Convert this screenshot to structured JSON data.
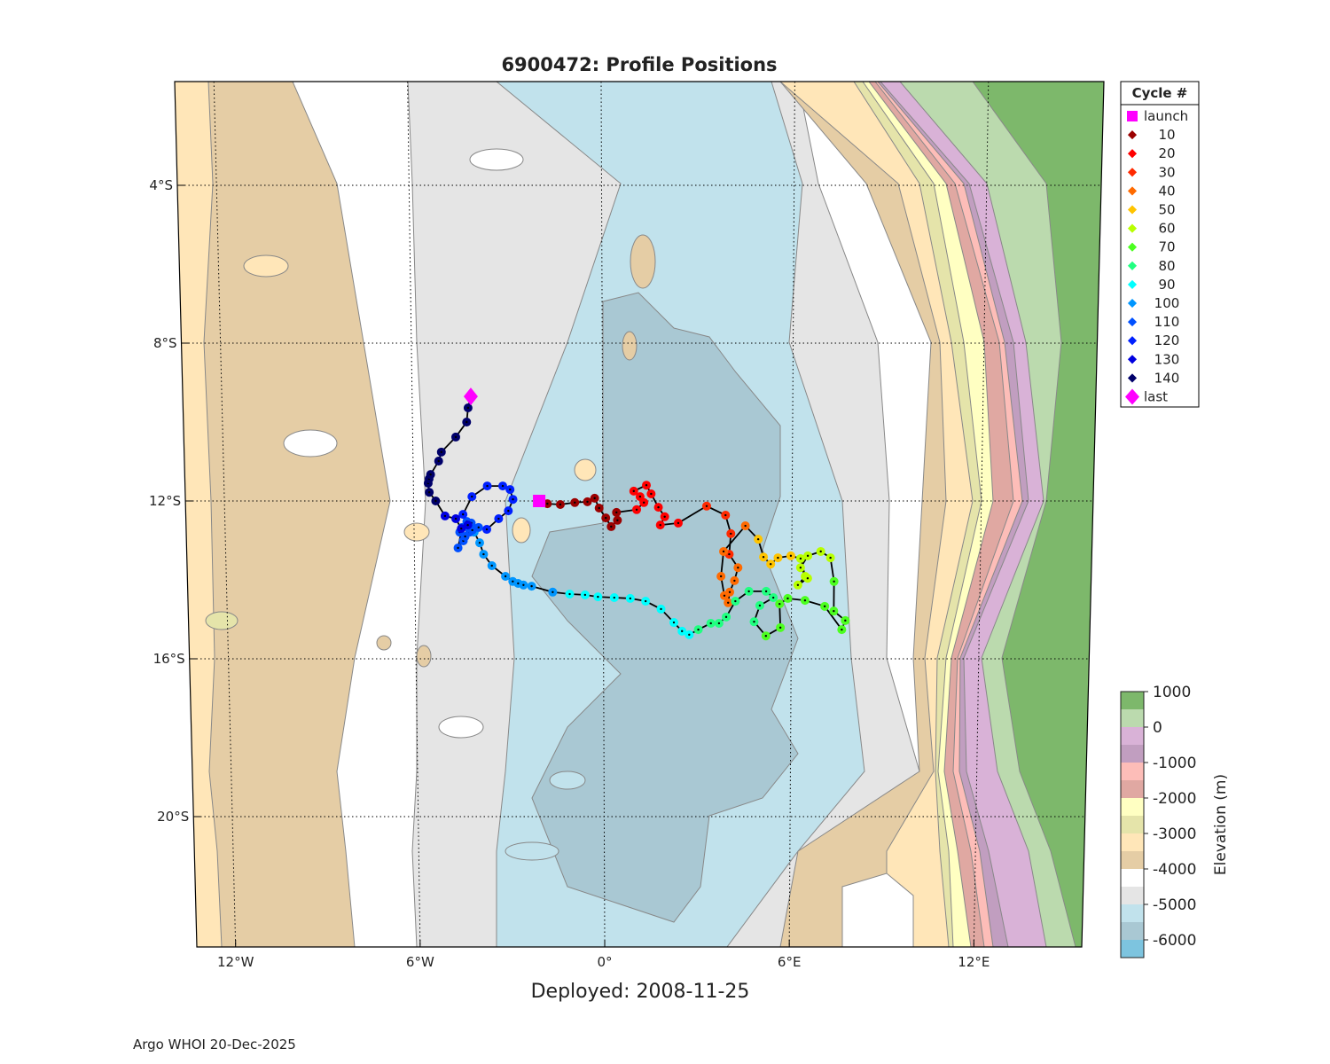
{
  "title": "6900472: Profile Positions",
  "deployed": "Deployed: 2008-11-25",
  "footer": "Argo WHOI 20-Dec-2025",
  "chart_data": {
    "type": "map-track",
    "title": "6900472: Profile Positions",
    "lat_range": [
      -23.4,
      -1.4
    ],
    "lon_range": [
      -13.3,
      15.6
    ],
    "grid": true,
    "lat_ticks": [
      {
        "value": -4,
        "label": "4°S"
      },
      {
        "value": -8,
        "label": "8°S"
      },
      {
        "value": -12,
        "label": "12°S"
      },
      {
        "value": -16,
        "label": "16°S"
      },
      {
        "value": -20,
        "label": "20°S"
      }
    ],
    "lon_ticks": [
      {
        "value": -12,
        "label": "12°W"
      },
      {
        "value": -6,
        "label": "6°W"
      },
      {
        "value": 0,
        "label": "0°"
      },
      {
        "value": 6,
        "label": "6°E"
      },
      {
        "value": 12,
        "label": "12°E"
      }
    ],
    "legend": {
      "title": "Cycle #",
      "placement": "right",
      "entries": [
        {
          "label": "launch",
          "color": "#FF00FF",
          "marker": "square"
        },
        {
          "label": "10",
          "color": "#9B0000",
          "marker": "dot"
        },
        {
          "label": "20",
          "color": "#FF0000",
          "marker": "dot"
        },
        {
          "label": "30",
          "color": "#FF2A00",
          "marker": "dot"
        },
        {
          "label": "40",
          "color": "#FF6A00",
          "marker": "dot"
        },
        {
          "label": "50",
          "color": "#FFC400",
          "marker": "dot"
        },
        {
          "label": "60",
          "color": "#B8FF00",
          "marker": "dot"
        },
        {
          "label": "70",
          "color": "#4CFF20",
          "marker": "dot"
        },
        {
          "label": "80",
          "color": "#20FF80",
          "marker": "dot"
        },
        {
          "label": "90",
          "color": "#00FFFF",
          "marker": "dot"
        },
        {
          "label": "100",
          "color": "#0096FF",
          "marker": "dot"
        },
        {
          "label": "110",
          "color": "#0050FF",
          "marker": "dot"
        },
        {
          "label": "120",
          "color": "#0020FF",
          "marker": "dot"
        },
        {
          "label": "130",
          "color": "#0000E0",
          "marker": "dot"
        },
        {
          "label": "140",
          "color": "#00006A",
          "marker": "dot"
        },
        {
          "label": "last",
          "color": "#FF00FF",
          "marker": "diamond"
        }
      ]
    },
    "launch": {
      "lon": -2.02,
      "lat": -12.0
    },
    "last": {
      "lon": -4.15,
      "lat": -9.35
    },
    "track": [
      {
        "legend_index": 1,
        "points": [
          [
            -1.76,
            -12.07
          ],
          [
            -1.35,
            -12.09
          ],
          [
            -0.89,
            -12.04
          ],
          [
            -0.49,
            -12.02
          ],
          [
            -0.26,
            -11.93
          ],
          [
            -0.12,
            -12.18
          ],
          [
            0.09,
            -12.43
          ],
          [
            0.26,
            -12.65
          ],
          [
            0.46,
            -12.49
          ],
          [
            0.43,
            -12.29
          ]
        ]
      },
      {
        "legend_index": 2,
        "points": [
          [
            1.07,
            -12.22
          ],
          [
            1.3,
            -12.04
          ],
          [
            1.18,
            -11.89
          ],
          [
            0.98,
            -11.75
          ],
          [
            1.38,
            -11.6
          ],
          [
            1.53,
            -11.82
          ],
          [
            1.76,
            -12.16
          ],
          [
            1.96,
            -12.4
          ],
          [
            1.82,
            -12.61
          ],
          [
            2.39,
            -12.56
          ]
        ]
      },
      {
        "legend_index": 3,
        "points": [
          [
            3.29,
            -12.13
          ],
          [
            3.89,
            -12.36
          ],
          [
            4.06,
            -12.83
          ],
          [
            4.01,
            -13.35
          ]
        ]
      },
      {
        "legend_index": 4,
        "points": [
          [
            4.29,
            -13.69
          ],
          [
            4.18,
            -14.02
          ],
          [
            4.03,
            -14.31
          ],
          [
            3.98,
            -14.58
          ],
          [
            3.86,
            -14.4
          ],
          [
            3.75,
            -13.91
          ],
          [
            3.83,
            -13.28
          ],
          [
            4.52,
            -12.63
          ]
        ]
      },
      {
        "legend_index": 5,
        "points": [
          [
            4.93,
            -12.97
          ],
          [
            5.1,
            -13.42
          ],
          [
            5.33,
            -13.6
          ],
          [
            5.56,
            -13.44
          ],
          [
            5.97,
            -13.39
          ]
        ]
      },
      {
        "legend_index": 6,
        "points": [
          [
            6.28,
            -13.46
          ],
          [
            6.43,
            -13.91
          ],
          [
            6.2,
            -14.13
          ],
          [
            6.51,
            -13.96
          ],
          [
            6.28,
            -13.69
          ],
          [
            6.51,
            -13.39
          ],
          [
            6.92,
            -13.28
          ],
          [
            7.23,
            -13.44
          ]
        ]
      },
      {
        "legend_index": 7,
        "points": [
          [
            7.35,
            -14.04
          ],
          [
            7.35,
            -14.79
          ],
          [
            7.72,
            -15.03
          ],
          [
            7.61,
            -15.26
          ],
          [
            7.06,
            -14.67
          ],
          [
            6.43,
            -14.52
          ],
          [
            5.88,
            -14.47
          ],
          [
            5.62,
            -14.61
          ],
          [
            5.65,
            -15.21
          ],
          [
            5.19,
            -15.42
          ]
        ]
      },
      {
        "legend_index": 8,
        "points": [
          [
            4.81,
            -15.06
          ],
          [
            4.99,
            -14.65
          ],
          [
            5.42,
            -14.45
          ],
          [
            5.19,
            -14.29
          ],
          [
            4.64,
            -14.29
          ],
          [
            4.21,
            -14.54
          ],
          [
            3.92,
            -14.94
          ],
          [
            3.69,
            -15.1
          ],
          [
            3.43,
            -15.1
          ],
          [
            3.03,
            -15.26
          ]
        ]
      },
      {
        "legend_index": 9,
        "points": [
          [
            2.74,
            -15.39
          ],
          [
            2.51,
            -15.3
          ],
          [
            2.25,
            -15.08
          ],
          [
            1.84,
            -14.74
          ],
          [
            1.35,
            -14.54
          ],
          [
            0.86,
            -14.47
          ],
          [
            0.35,
            -14.45
          ],
          [
            -0.17,
            -14.43
          ],
          [
            -0.58,
            -14.38
          ],
          [
            -1.07,
            -14.36
          ]
        ]
      },
      {
        "legend_index": 10,
        "points": [
          [
            -1.61,
            -14.31
          ],
          [
            -2.28,
            -14.16
          ],
          [
            -2.54,
            -14.13
          ],
          [
            -2.71,
            -14.09
          ],
          [
            -2.88,
            -14.04
          ],
          [
            -3.11,
            -13.91
          ],
          [
            -3.54,
            -13.64
          ],
          [
            -3.8,
            -13.35
          ],
          [
            -3.92,
            -13.06
          ],
          [
            -4.09,
            -12.79
          ]
        ]
      },
      {
        "legend_index": 11,
        "points": [
          [
            -4.24,
            -12.79
          ],
          [
            -4.44,
            -13.01
          ],
          [
            -4.61,
            -13.19
          ],
          [
            -4.47,
            -12.67
          ],
          [
            -4.32,
            -12.52
          ],
          [
            -4.15,
            -12.74
          ],
          [
            -4.38,
            -12.9
          ],
          [
            -4.55,
            -12.79
          ],
          [
            -4.18,
            -12.56
          ],
          [
            -3.95,
            -12.67
          ]
        ]
      },
      {
        "legend_index": 12,
        "points": [
          [
            -3.69,
            -12.72
          ],
          [
            -3.31,
            -12.45
          ],
          [
            -3.0,
            -12.25
          ],
          [
            -2.85,
            -11.96
          ],
          [
            -2.94,
            -11.71
          ],
          [
            -3.17,
            -11.62
          ],
          [
            -3.66,
            -11.62
          ],
          [
            -4.15,
            -11.89
          ],
          [
            -4.44,
            -12.34
          ]
        ]
      },
      {
        "legend_index": 13,
        "points": [
          [
            -4.29,
            -12.61
          ],
          [
            -4.5,
            -12.7
          ],
          [
            -4.67,
            -12.45
          ],
          [
            -5.01,
            -12.38
          ]
        ]
      },
      {
        "legend_index": 14,
        "points": [
          [
            -5.3,
            -12.0
          ],
          [
            -5.5,
            -11.78
          ],
          [
            -5.53,
            -11.55
          ],
          [
            -5.5,
            -11.44
          ],
          [
            -5.45,
            -11.33
          ],
          [
            -5.19,
            -10.99
          ],
          [
            -5.1,
            -10.76
          ],
          [
            -4.64,
            -10.38
          ],
          [
            -4.29,
            -10.0
          ],
          [
            -4.24,
            -9.64
          ]
        ]
      }
    ],
    "colorbar": {
      "label": "Elevation (m)",
      "range": [
        -6500,
        1000
      ],
      "step": 500,
      "colors": [
        "#7DB86B",
        "#BBDAAE",
        "#D9B2D7",
        "#C19EC0",
        "#FDBDB8",
        "#E0A8A2",
        "#FFFFC2",
        "#E5E4AA",
        "#FFE6B8",
        "#E5CDA5",
        "#FFFFFF",
        "#E5E5E5",
        "#C1E2EC",
        "#A9C8D3",
        "#7DC4DF"
      ],
      "ticks": [
        {
          "value": 1000,
          "label": "1000"
        },
        {
          "value": 0,
          "label": "0"
        },
        {
          "value": -1000,
          "label": "-1000"
        },
        {
          "value": -2000,
          "label": "-2000"
        },
        {
          "value": -3000,
          "label": "-3000"
        },
        {
          "value": -4000,
          "label": "-4000"
        },
        {
          "value": -5000,
          "label": "-5000"
        },
        {
          "value": -6000,
          "label": "-6000"
        }
      ]
    }
  }
}
